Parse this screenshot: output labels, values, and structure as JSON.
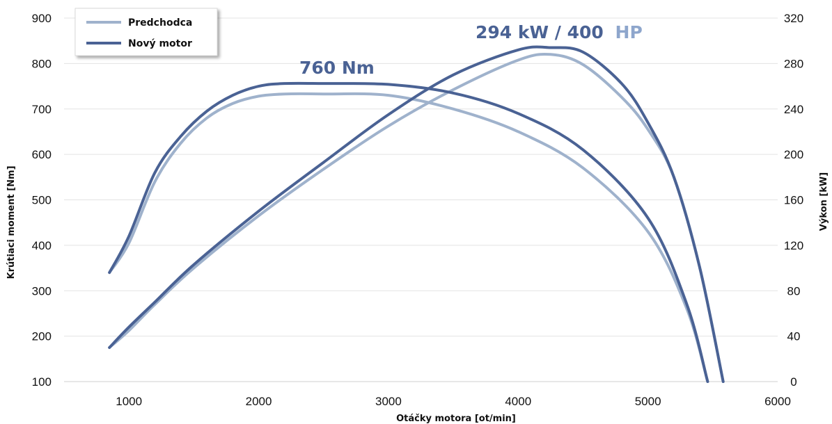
{
  "chart_data": {
    "type": "line",
    "xlabel": "Otáčky motora [ot/min]",
    "ylabel": "Krútiaci moment [Nm]",
    "y2label": "Výkon [kW]",
    "xlim": [
      500,
      6000
    ],
    "ylim": [
      100,
      900
    ],
    "y2lim": [
      0,
      320
    ],
    "x_ticks": [
      1000,
      2000,
      3000,
      4000,
      5000,
      6000
    ],
    "y_ticks": [
      100,
      200,
      300,
      400,
      500,
      600,
      700,
      800,
      900
    ],
    "y2_ticks": [
      0,
      40,
      80,
      120,
      160,
      200,
      240,
      280,
      320
    ],
    "grid": "horizontal",
    "legend_position": "top-left",
    "legend": [
      "Predchodca",
      "Nový motor"
    ],
    "colors": {
      "Predchodca": "#9fb2cc",
      "Nový motor": "#4a6294"
    },
    "series": [
      {
        "name": "Predchodca",
        "quantity": "torque",
        "axis": "left",
        "color": "#9fb2cc",
        "x": [
          850,
          1000,
          1200,
          1400,
          1600,
          1800,
          2000,
          2200,
          2500,
          3000,
          3500,
          4000,
          4500,
          5000,
          5300,
          5460
        ],
        "y": [
          340,
          405,
          540,
          625,
          680,
          712,
          728,
          733,
          733,
          730,
          700,
          650,
          570,
          430,
          260,
          100
        ]
      },
      {
        "name": "Nový motor",
        "quantity": "torque",
        "axis": "left",
        "color": "#4a6294",
        "x": [
          850,
          1000,
          1200,
          1400,
          1600,
          1800,
          2000,
          2200,
          2500,
          3000,
          3500,
          4000,
          4500,
          5000,
          5300,
          5460
        ],
        "y": [
          340,
          420,
          560,
          640,
          695,
          730,
          750,
          756,
          756,
          754,
          735,
          690,
          610,
          460,
          270,
          100
        ]
      },
      {
        "name": "Predchodca",
        "quantity": "power",
        "axis": "right",
        "color": "#9fb2cc",
        "x": [
          850,
          1000,
          1200,
          1500,
          2000,
          2500,
          3000,
          3500,
          4000,
          4250,
          4500,
          4800,
          5000,
          5200,
          5400,
          5580
        ],
        "y": [
          30,
          45,
          68,
          100,
          146,
          187,
          225,
          257,
          283,
          288,
          279,
          250,
          222,
          180,
          100,
          0
        ]
      },
      {
        "name": "Nový motor",
        "quantity": "power",
        "axis": "right",
        "color": "#4a6294",
        "x": [
          850,
          1000,
          1200,
          1500,
          2000,
          2500,
          3000,
          3500,
          4000,
          4250,
          4500,
          4800,
          5000,
          5200,
          5400,
          5580
        ],
        "y": [
          30,
          48,
          70,
          103,
          150,
          193,
          235,
          270,
          292,
          294,
          290,
          262,
          228,
          180,
          100,
          0
        ]
      }
    ],
    "annotations": [
      {
        "text": "760 Nm",
        "color": "#4a6294"
      },
      {
        "text": "294 kW / 400",
        "color": "#4a6294",
        "suffix": "HP",
        "suffix_color": "#8ea6cc"
      }
    ]
  }
}
